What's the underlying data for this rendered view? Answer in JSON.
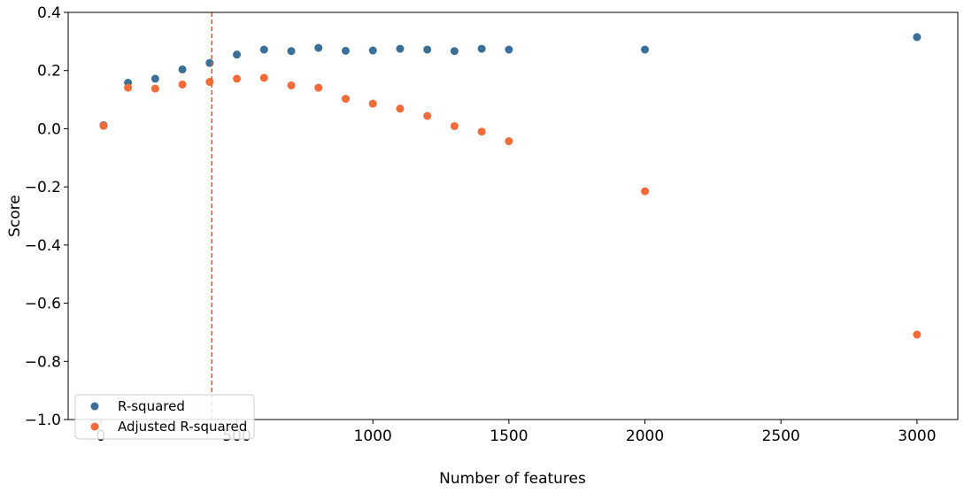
{
  "chart_data": {
    "type": "scatter",
    "title": "",
    "xlabel": "Number of features",
    "ylabel": "Score",
    "xlim": [
      -120,
      3150
    ],
    "ylim": [
      -1.0,
      0.4
    ],
    "xticks": [
      0,
      500,
      1000,
      1500,
      2000,
      2500,
      3000
    ],
    "xtick_labels": [
      "0",
      "500",
      "1000",
      "1500",
      "2000",
      "2500",
      "3000"
    ],
    "yticks": [
      -1.0,
      -0.8,
      -0.6,
      -0.4,
      -0.2,
      0.0,
      0.2,
      0.4
    ],
    "ytick_labels": [
      "−1.0",
      "−0.8",
      "−0.6",
      "−0.4",
      "−0.2",
      "0.0",
      "0.2",
      "0.4"
    ],
    "grid": false,
    "legend": "lower-left",
    "vline": {
      "x": 408,
      "color": "#f4511e",
      "style": "dashed"
    },
    "series": [
      {
        "name": "R-squared",
        "color": "#3a6f98",
        "x": [
          10,
          100,
          200,
          300,
          400,
          500,
          600,
          700,
          800,
          900,
          1000,
          1100,
          1200,
          1300,
          1400,
          1500,
          2000,
          3000
        ],
        "y": [
          0.012,
          0.158,
          0.172,
          0.204,
          0.226,
          0.255,
          0.272,
          0.267,
          0.278,
          0.268,
          0.269,
          0.275,
          0.272,
          0.267,
          0.275,
          0.272,
          0.272,
          0.315
        ]
      },
      {
        "name": "Adjusted R-squared",
        "color": "#f26b38",
        "x": [
          10,
          100,
          200,
          300,
          400,
          500,
          600,
          700,
          800,
          900,
          1000,
          1100,
          1200,
          1300,
          1400,
          1500,
          2000,
          3000
        ],
        "y": [
          0.01,
          0.141,
          0.138,
          0.152,
          0.161,
          0.172,
          0.175,
          0.149,
          0.141,
          0.103,
          0.086,
          0.069,
          0.044,
          0.009,
          -0.01,
          -0.043,
          -0.215,
          -0.708
        ]
      }
    ]
  }
}
